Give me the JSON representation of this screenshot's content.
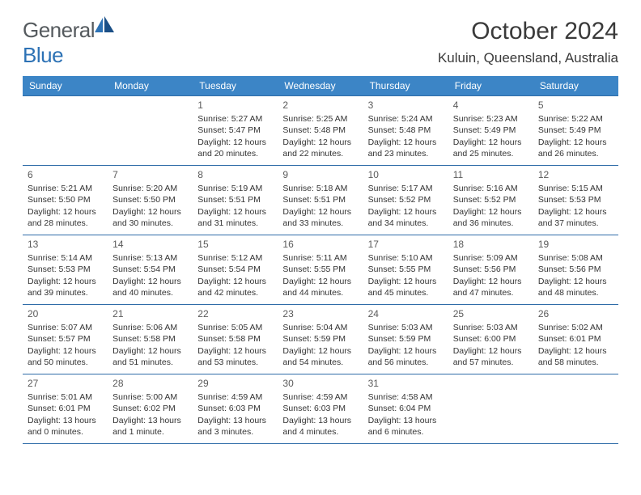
{
  "logo": {
    "text1": "General",
    "text2": "Blue"
  },
  "title": "October 2024",
  "location": "Kuluin, Queensland, Australia",
  "colors": {
    "header_bg": "#3c85c6",
    "header_text": "#ffffff",
    "row_border": "#2f6ca8",
    "body_text": "#333333",
    "logo_grey": "#555a5e",
    "logo_blue": "#2d72b5"
  },
  "weekdays": [
    "Sunday",
    "Monday",
    "Tuesday",
    "Wednesday",
    "Thursday",
    "Friday",
    "Saturday"
  ],
  "weeks": [
    [
      null,
      null,
      {
        "n": "1",
        "sr": "5:27 AM",
        "ss": "5:47 PM",
        "dl": "12 hours and 20 minutes."
      },
      {
        "n": "2",
        "sr": "5:25 AM",
        "ss": "5:48 PM",
        "dl": "12 hours and 22 minutes."
      },
      {
        "n": "3",
        "sr": "5:24 AM",
        "ss": "5:48 PM",
        "dl": "12 hours and 23 minutes."
      },
      {
        "n": "4",
        "sr": "5:23 AM",
        "ss": "5:49 PM",
        "dl": "12 hours and 25 minutes."
      },
      {
        "n": "5",
        "sr": "5:22 AM",
        "ss": "5:49 PM",
        "dl": "12 hours and 26 minutes."
      }
    ],
    [
      {
        "n": "6",
        "sr": "5:21 AM",
        "ss": "5:50 PM",
        "dl": "12 hours and 28 minutes."
      },
      {
        "n": "7",
        "sr": "5:20 AM",
        "ss": "5:50 PM",
        "dl": "12 hours and 30 minutes."
      },
      {
        "n": "8",
        "sr": "5:19 AM",
        "ss": "5:51 PM",
        "dl": "12 hours and 31 minutes."
      },
      {
        "n": "9",
        "sr": "5:18 AM",
        "ss": "5:51 PM",
        "dl": "12 hours and 33 minutes."
      },
      {
        "n": "10",
        "sr": "5:17 AM",
        "ss": "5:52 PM",
        "dl": "12 hours and 34 minutes."
      },
      {
        "n": "11",
        "sr": "5:16 AM",
        "ss": "5:52 PM",
        "dl": "12 hours and 36 minutes."
      },
      {
        "n": "12",
        "sr": "5:15 AM",
        "ss": "5:53 PM",
        "dl": "12 hours and 37 minutes."
      }
    ],
    [
      {
        "n": "13",
        "sr": "5:14 AM",
        "ss": "5:53 PM",
        "dl": "12 hours and 39 minutes."
      },
      {
        "n": "14",
        "sr": "5:13 AM",
        "ss": "5:54 PM",
        "dl": "12 hours and 40 minutes."
      },
      {
        "n": "15",
        "sr": "5:12 AM",
        "ss": "5:54 PM",
        "dl": "12 hours and 42 minutes."
      },
      {
        "n": "16",
        "sr": "5:11 AM",
        "ss": "5:55 PM",
        "dl": "12 hours and 44 minutes."
      },
      {
        "n": "17",
        "sr": "5:10 AM",
        "ss": "5:55 PM",
        "dl": "12 hours and 45 minutes."
      },
      {
        "n": "18",
        "sr": "5:09 AM",
        "ss": "5:56 PM",
        "dl": "12 hours and 47 minutes."
      },
      {
        "n": "19",
        "sr": "5:08 AM",
        "ss": "5:56 PM",
        "dl": "12 hours and 48 minutes."
      }
    ],
    [
      {
        "n": "20",
        "sr": "5:07 AM",
        "ss": "5:57 PM",
        "dl": "12 hours and 50 minutes."
      },
      {
        "n": "21",
        "sr": "5:06 AM",
        "ss": "5:58 PM",
        "dl": "12 hours and 51 minutes."
      },
      {
        "n": "22",
        "sr": "5:05 AM",
        "ss": "5:58 PM",
        "dl": "12 hours and 53 minutes."
      },
      {
        "n": "23",
        "sr": "5:04 AM",
        "ss": "5:59 PM",
        "dl": "12 hours and 54 minutes."
      },
      {
        "n": "24",
        "sr": "5:03 AM",
        "ss": "5:59 PM",
        "dl": "12 hours and 56 minutes."
      },
      {
        "n": "25",
        "sr": "5:03 AM",
        "ss": "6:00 PM",
        "dl": "12 hours and 57 minutes."
      },
      {
        "n": "26",
        "sr": "5:02 AM",
        "ss": "6:01 PM",
        "dl": "12 hours and 58 minutes."
      }
    ],
    [
      {
        "n": "27",
        "sr": "5:01 AM",
        "ss": "6:01 PM",
        "dl": "13 hours and 0 minutes."
      },
      {
        "n": "28",
        "sr": "5:00 AM",
        "ss": "6:02 PM",
        "dl": "13 hours and 1 minute."
      },
      {
        "n": "29",
        "sr": "4:59 AM",
        "ss": "6:03 PM",
        "dl": "13 hours and 3 minutes."
      },
      {
        "n": "30",
        "sr": "4:59 AM",
        "ss": "6:03 PM",
        "dl": "13 hours and 4 minutes."
      },
      {
        "n": "31",
        "sr": "4:58 AM",
        "ss": "6:04 PM",
        "dl": "13 hours and 6 minutes."
      },
      null,
      null
    ]
  ],
  "labels": {
    "sunrise": "Sunrise:",
    "sunset": "Sunset:",
    "daylight": "Daylight:"
  }
}
